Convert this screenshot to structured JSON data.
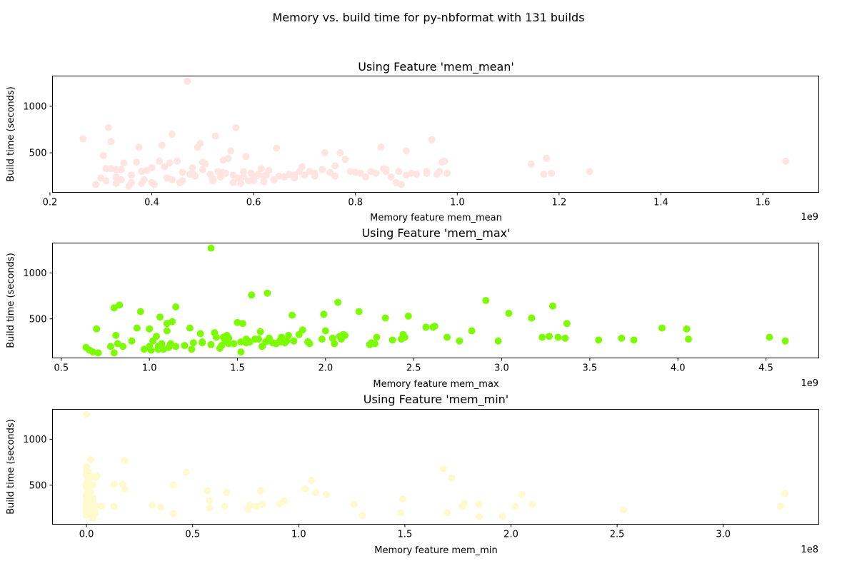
{
  "figure": {
    "suptitle": "Memory vs. build time for py-nbformat with 131 builds"
  },
  "chart_data": [
    {
      "type": "scatter",
      "title": "Using Feature 'mem_mean'",
      "xlabel": "Memory feature mem_mean",
      "ylabel": "Build time (seconds)",
      "x_offset_label": "1e9",
      "color": "#ffe4e1",
      "xlim": [
        0.205,
        1.71
      ],
      "ylim": [
        75,
        1325
      ],
      "xticks": [
        "0.2",
        "0.4",
        "0.6",
        "0.8",
        "1.0",
        "1.2",
        "1.4",
        "1.6"
      ],
      "yticks": [
        "500",
        "1000"
      ],
      "series": [
        {
          "x": [
            0.265,
            0.29,
            0.3,
            0.305,
            0.31,
            0.315,
            0.32,
            0.32,
            0.33,
            0.33,
            0.34,
            0.345,
            0.355,
            0.36,
            0.37,
            0.375,
            0.38,
            0.385,
            0.39,
            0.4,
            0.405,
            0.415,
            0.42,
            0.425,
            0.43,
            0.435,
            0.44,
            0.45,
            0.455,
            0.46,
            0.47,
            0.475,
            0.48,
            0.485,
            0.49,
            0.495,
            0.5,
            0.505,
            0.515,
            0.52,
            0.525,
            0.53,
            0.535,
            0.54,
            0.545,
            0.55,
            0.555,
            0.56,
            0.565,
            0.57,
            0.575,
            0.58,
            0.585,
            0.59,
            0.595,
            0.6,
            0.605,
            0.61,
            0.615,
            0.62,
            0.625,
            0.63,
            0.64,
            0.645,
            0.65,
            0.66,
            0.67,
            0.68,
            0.69,
            0.695,
            0.7,
            0.71,
            0.72,
            0.735,
            0.74,
            0.75,
            0.76,
            0.77,
            0.78,
            0.79,
            0.8,
            0.81,
            0.83,
            0.84,
            0.85,
            0.855,
            0.86,
            0.87,
            0.88,
            0.885,
            0.89,
            0.9,
            0.91,
            0.92,
            0.94,
            0.95,
            0.96,
            0.965,
            0.97,
            0.975,
            1.145,
            1.17,
            1.175,
            1.185,
            1.26,
            1.645,
            0.6,
            0.62,
            0.58,
            0.56,
            0.54,
            0.52,
            0.46,
            0.44,
            0.4,
            0.38,
            0.36,
            0.34,
            0.33,
            0.31,
            0.5,
            0.48,
            0.66,
            0.68,
            0.72,
            0.76,
            0.82,
            0.86,
            0.9,
            0.94,
            0.98
          ],
          "y": [
            650,
            160,
            230,
            470,
            200,
            770,
            330,
            620,
            170,
            320,
            320,
            390,
            140,
            180,
            400,
            560,
            170,
            210,
            310,
            180,
            160,
            410,
            580,
            350,
            230,
            390,
            700,
            410,
            180,
            290,
            1270,
            270,
            340,
            250,
            560,
            600,
            400,
            380,
            270,
            200,
            680,
            300,
            240,
            420,
            280,
            440,
            520,
            180,
            770,
            230,
            170,
            300,
            460,
            200,
            280,
            230,
            250,
            270,
            330,
            190,
            260,
            310,
            210,
            550,
            250,
            240,
            270,
            260,
            300,
            350,
            260,
            300,
            250,
            320,
            500,
            290,
            250,
            500,
            430,
            300,
            290,
            280,
            300,
            280,
            560,
            330,
            300,
            240,
            180,
            300,
            160,
            520,
            280,
            270,
            280,
            640,
            270,
            300,
            400,
            410,
            380,
            270,
            440,
            280,
            300,
            410,
            200,
            250,
            240,
            260,
            290,
            220,
            200,
            210,
            340,
            300,
            260,
            210,
            240,
            330,
            320,
            280,
            240,
            230,
            280,
            360,
            240,
            320,
            260,
            300,
            280
          ]
        }
      ]
    },
    {
      "type": "scatter",
      "title": "Using Feature 'mem_max'",
      "xlabel": "Memory feature mem_max",
      "ylabel": "Build time (seconds)",
      "x_offset_label": "1e9",
      "color": "#7cfc00",
      "xlim": [
        0.45,
        4.8
      ],
      "ylim": [
        75,
        1325
      ],
      "xticks": [
        "0.5",
        "1.0",
        "1.5",
        "2.0",
        "2.5",
        "3.0",
        "3.5",
        "4.0",
        "4.5"
      ],
      "yticks": [
        "500",
        "1000"
      ],
      "series": [
        {
          "x": [
            0.64,
            0.66,
            0.68,
            0.7,
            0.71,
            0.78,
            0.8,
            0.8,
            0.81,
            0.82,
            0.83,
            0.85,
            0.93,
            0.95,
            0.97,
            1.0,
            1.01,
            1.04,
            1.05,
            1.06,
            1.07,
            1.08,
            1.1,
            1.1,
            1.11,
            1.12,
            1.13,
            1.15,
            1.15,
            1.23,
            1.24,
            1.25,
            1.29,
            1.3,
            1.35,
            1.37,
            1.38,
            1.4,
            1.41,
            1.42,
            1.43,
            1.44,
            1.45,
            1.5,
            1.52,
            1.52,
            1.53,
            1.55,
            1.57,
            1.58,
            1.6,
            1.63,
            1.64,
            1.66,
            1.67,
            1.68,
            1.7,
            1.72,
            1.74,
            1.75,
            1.77,
            1.79,
            1.81,
            1.82,
            1.85,
            1.87,
            1.9,
            1.91,
            1.98,
            1.99,
            2.0,
            2.04,
            2.07,
            2.08,
            2.09,
            2.1,
            2.11,
            2.19,
            2.26,
            2.28,
            2.29,
            2.34,
            2.38,
            2.43,
            2.44,
            2.45,
            2.47,
            2.57,
            2.61,
            2.62,
            2.69,
            2.76,
            2.83,
            2.91,
            2.98,
            3.04,
            3.17,
            3.23,
            3.27,
            3.29,
            3.32,
            3.36,
            3.37,
            3.55,
            3.68,
            3.75,
            3.91,
            4.05,
            4.06,
            4.52,
            4.61,
            1.45,
            1.7,
            1.9,
            1.35,
            1.2,
            1.05,
            0.9,
            1.55,
            1.75,
            2.05,
            1.6,
            1.3,
            1.12,
            1.02,
            1.48,
            1.62,
            1.78,
            2.25,
            1.0
          ],
          "y": [
            190,
            160,
            140,
            390,
            130,
            200,
            130,
            620,
            320,
            230,
            650,
            200,
            400,
            580,
            170,
            390,
            160,
            310,
            170,
            520,
            230,
            170,
            370,
            450,
            190,
            230,
            470,
            200,
            630,
            400,
            170,
            240,
            340,
            250,
            1270,
            350,
            300,
            180,
            210,
            300,
            260,
            320,
            290,
            460,
            250,
            140,
            450,
            280,
            250,
            760,
            280,
            360,
            200,
            250,
            780,
            290,
            240,
            230,
            260,
            300,
            240,
            320,
            540,
            260,
            330,
            380,
            250,
            230,
            280,
            550,
            370,
            290,
            680,
            310,
            280,
            330,
            320,
            580,
            240,
            230,
            300,
            510,
            270,
            280,
            330,
            300,
            530,
            410,
            410,
            420,
            300,
            260,
            370,
            700,
            260,
            560,
            510,
            300,
            310,
            640,
            300,
            290,
            450,
            270,
            290,
            270,
            400,
            390,
            280,
            300,
            260,
            230,
            240,
            250,
            220,
            210,
            200,
            260,
            240,
            250,
            230,
            280,
            240,
            220,
            260,
            230,
            280,
            260,
            220,
            200
          ]
        }
      ]
    },
    {
      "type": "scatter",
      "title": "Using Feature 'mem_min'",
      "xlabel": "Memory feature mem_min",
      "ylabel": "Build time (seconds)",
      "x_offset_label": "1e8",
      "color": "#fffacd",
      "xlim": [
        -0.16,
        3.45
      ],
      "ylim": [
        75,
        1325
      ],
      "xticks": [
        "0.0",
        "0.5",
        "1.0",
        "1.5",
        "2.0",
        "2.5",
        "3.0"
      ],
      "yticks": [
        "500",
        "1000"
      ],
      "series": [
        {
          "x": [
            0.0,
            0.0,
            0.0,
            0.0,
            0.0,
            0.0,
            0.0,
            0.0,
            0.01,
            0.01,
            0.01,
            0.01,
            0.01,
            0.02,
            0.02,
            0.02,
            0.02,
            0.03,
            0.03,
            0.03,
            0.03,
            0.04,
            0.04,
            0.05,
            0.07,
            0.13,
            0.13,
            0.17,
            0.18,
            0.18,
            0.31,
            0.35,
            0.41,
            0.41,
            0.47,
            0.57,
            0.58,
            0.58,
            0.65,
            0.66,
            0.76,
            0.77,
            0.8,
            0.82,
            0.83,
            0.91,
            0.93,
            1.03,
            1.06,
            1.08,
            1.13,
            1.26,
            1.3,
            1.48,
            1.49,
            1.68,
            1.7,
            1.72,
            1.77,
            1.78,
            1.85,
            1.85,
            1.96,
            2.02,
            2.05,
            2.1,
            2.53,
            3.27,
            3.29,
            0.0,
            0.0,
            0.01,
            0.01,
            0.02,
            0.02,
            0.03,
            0.03,
            0.0,
            0.01,
            0.02,
            0.03,
            0.04,
            0.0,
            0.01,
            0.02,
            0.0,
            0.01,
            0.02,
            0.03,
            0.0,
            0.01,
            0.02,
            0.0,
            0.01,
            0.02,
            0.03,
            0.04,
            0.0,
            0.01,
            0.02,
            0.0,
            0.01,
            0.03,
            0.0,
            0.02,
            0.01,
            0.0,
            0.03,
            0.02,
            0.01,
            0.0,
            0.02,
            0.04,
            0.01,
            0.0,
            0.03,
            0.02,
            0.01,
            0.0,
            0.01,
            0.02,
            0.0,
            0.03,
            0.01,
            0.02,
            0.0,
            0.01,
            0.02,
            0.0,
            0.01,
            0.0
          ],
          "y": [
            1270,
            700,
            650,
            600,
            520,
            400,
            300,
            200,
            640,
            560,
            460,
            350,
            250,
            780,
            600,
            420,
            230,
            500,
            330,
            180,
            140,
            580,
            280,
            600,
            270,
            510,
            270,
            510,
            770,
            460,
            280,
            260,
            190,
            500,
            640,
            440,
            330,
            250,
            270,
            420,
            240,
            280,
            270,
            440,
            290,
            300,
            330,
            460,
            550,
            420,
            400,
            290,
            170,
            200,
            350,
            680,
            200,
            580,
            270,
            300,
            160,
            290,
            160,
            270,
            400,
            290,
            230,
            270,
            410,
            480,
            380,
            330,
            280,
            270,
            240,
            360,
            300,
            230,
            210,
            260,
            320,
            190,
            250,
            290,
            220,
            360,
            270,
            310,
            200,
            170,
            330,
            280,
            240,
            310,
            260,
            190,
            220,
            350,
            300,
            230,
            280,
            260,
            210,
            240,
            300,
            250,
            220,
            270,
            200,
            260,
            290,
            230,
            190,
            310,
            250,
            220,
            270,
            240,
            280,
            300,
            260,
            230,
            210,
            280,
            250,
            240,
            260,
            220,
            270,
            250,
            230
          ]
        }
      ]
    }
  ]
}
